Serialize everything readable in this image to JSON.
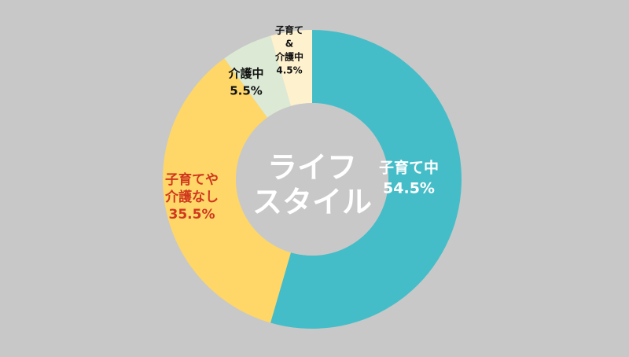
{
  "colors": {
    "background": "#c8c8c8",
    "hole": "#c8c8c8",
    "center_text": "#ffffff"
  },
  "chart_data": {
    "type": "pie",
    "donut": true,
    "start_angle_deg": 0,
    "direction": "clockwise",
    "center_label_lines": [
      "ライフ",
      "スタイル"
    ],
    "legend": "none",
    "slices": [
      {
        "label_lines": [
          "子育て中"
        ],
        "value": 54.5,
        "value_text": "54.5%",
        "color": "#45bdc8",
        "label_color": "#ffffff"
      },
      {
        "label_lines": [
          "子育てや",
          "介護なし"
        ],
        "value": 35.5,
        "value_text": "35.5%",
        "color": "#fed768",
        "label_color": "#d0381e"
      },
      {
        "label_lines": [
          "介護中"
        ],
        "value": 5.5,
        "value_text": "5.5%",
        "color": "#dcead5",
        "label_color": "#111111"
      },
      {
        "label_lines": [
          "子育て",
          "&",
          "介護中"
        ],
        "value": 4.5,
        "value_text": "4.5%",
        "color": "#fdf1ce",
        "label_color": "#111111"
      }
    ]
  }
}
